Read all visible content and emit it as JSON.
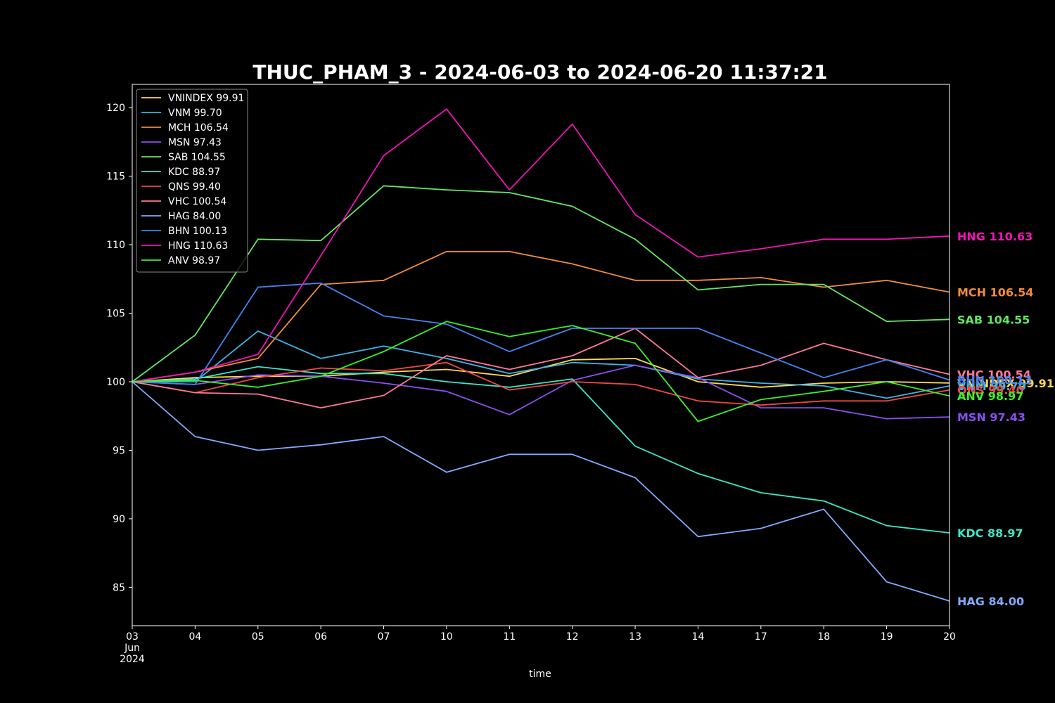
{
  "chart_data": {
    "type": "line",
    "title": "THUC_PHAM_3 - 2024-06-03 to 2024-06-20 11:37:21",
    "xlabel": "time",
    "ylabel": "",
    "x_tick_labels": [
      "03\nJun\n2024",
      "04",
      "05",
      "06",
      "07",
      "10",
      "11",
      "12",
      "13",
      "14",
      "17",
      "18",
      "19",
      "20"
    ],
    "x": [
      "2024-06-03",
      "2024-06-04",
      "2024-06-05",
      "2024-06-06",
      "2024-06-07",
      "2024-06-10",
      "2024-06-11",
      "2024-06-12",
      "2024-06-13",
      "2024-06-14",
      "2024-06-17",
      "2024-06-18",
      "2024-06-19",
      "2024-06-20"
    ],
    "ylim": [
      82.2,
      121.7
    ],
    "y_ticks": [
      85,
      90,
      95,
      100,
      105,
      110,
      115,
      120
    ],
    "grid": false,
    "legend_position": "top-left",
    "background": "#000000",
    "series": [
      {
        "name": "VNINDEX 99.91",
        "end_label": "VNINDEX 99.91",
        "color": "#ffd84d",
        "values": [
          100,
          100.3,
          100.4,
          100.4,
          100.7,
          100.9,
          100.4,
          101.6,
          101.7,
          100.0,
          99.6,
          99.9,
          100.0,
          99.91
        ]
      },
      {
        "name": "VNM 99.70",
        "end_label": "VNM 99.70",
        "color": "#3cb4e6",
        "values": [
          100,
          100.0,
          103.7,
          101.7,
          102.6,
          101.7,
          100.6,
          101.4,
          101.2,
          100.2,
          99.9,
          99.7,
          98.8,
          99.7
        ]
      },
      {
        "name": "MCH 106.54",
        "end_label": "MCH 106.54",
        "color": "#f08c3c",
        "values": [
          100,
          100.7,
          101.7,
          107.1,
          107.4,
          109.5,
          109.5,
          108.6,
          107.4,
          107.4,
          107.6,
          106.9,
          107.4,
          106.54
        ]
      },
      {
        "name": "MSN 97.43",
        "end_label": "MSN 97.43",
        "color": "#8c50f0",
        "values": [
          100,
          99.8,
          100.5,
          100.4,
          99.9,
          99.3,
          97.6,
          100.1,
          101.2,
          100.3,
          98.1,
          98.1,
          97.3,
          97.43
        ]
      },
      {
        "name": "SAB 104.55",
        "end_label": "SAB 104.55",
        "color": "#64e664",
        "values": [
          100,
          103.4,
          110.4,
          110.3,
          114.3,
          114.0,
          113.8,
          112.8,
          110.4,
          106.7,
          107.1,
          107.1,
          104.4,
          104.55
        ]
      },
      {
        "name": "KDC 88.97",
        "end_label": "KDC 88.97",
        "color": "#3ce6c8",
        "values": [
          100,
          100.2,
          101.1,
          100.6,
          100.6,
          100.0,
          99.6,
          100.2,
          95.3,
          93.3,
          91.9,
          91.3,
          89.5,
          88.97
        ]
      },
      {
        "name": "QNS 99.40",
        "end_label": "QNS 99.40",
        "color": "#f04646",
        "values": [
          100,
          99.2,
          100.3,
          101.0,
          100.8,
          101.4,
          99.4,
          100.0,
          99.8,
          98.6,
          98.3,
          98.6,
          98.6,
          99.4
        ]
      },
      {
        "name": "VHC 100.54",
        "end_label": "VHC 100.54",
        "color": "#ff7896",
        "values": [
          100,
          99.2,
          99.1,
          98.1,
          99.0,
          101.9,
          100.9,
          101.9,
          103.9,
          100.3,
          101.2,
          102.8,
          101.6,
          100.54
        ]
      },
      {
        "name": "HAG 84.00",
        "end_label": "HAG 84.00",
        "color": "#82aaff",
        "values": [
          100,
          96.0,
          95.0,
          95.4,
          96.0,
          93.4,
          94.7,
          94.7,
          93.0,
          88.7,
          89.3,
          90.7,
          85.4,
          84.0
        ]
      },
      {
        "name": "BHN 100.13",
        "end_label": "BHN 100.13",
        "color": "#4682f0",
        "values": [
          100,
          99.8,
          106.9,
          107.2,
          104.8,
          104.2,
          102.2,
          103.9,
          103.9,
          103.9,
          102.1,
          100.3,
          101.6,
          100.13
        ]
      },
      {
        "name": "HNG 110.63",
        "end_label": "HNG 110.63",
        "color": "#f014b4",
        "values": [
          100,
          100.7,
          102.0,
          109.2,
          116.5,
          119.9,
          114.0,
          118.8,
          112.2,
          109.1,
          109.7,
          110.4,
          110.4,
          110.63
        ]
      },
      {
        "name": "ANV 98.97",
        "end_label": "ANV 98.97",
        "color": "#3cf028",
        "values": [
          100,
          100.1,
          99.6,
          100.4,
          102.2,
          104.4,
          103.3,
          104.1,
          102.8,
          97.1,
          98.7,
          99.3,
          100.0,
          98.97
        ]
      }
    ]
  }
}
